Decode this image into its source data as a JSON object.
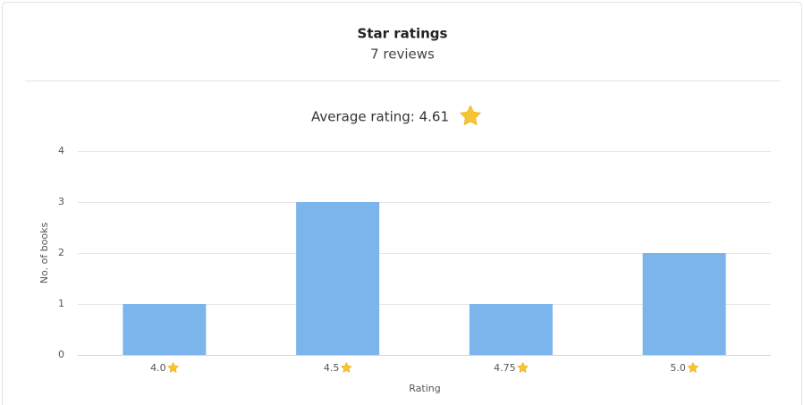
{
  "chart_data": {
    "type": "bar",
    "title": "Star ratings",
    "subtitle": "7 reviews",
    "annotation": "Average rating: 4.61",
    "categories": [
      "4.0",
      "4.5",
      "4.75",
      "5.0"
    ],
    "values": [
      1,
      3,
      1,
      2
    ],
    "color": "#7cb5ec",
    "xlabel": "Rating",
    "ylabel": "No. of books",
    "ylim": [
      0,
      4
    ],
    "yticks": [
      0,
      1,
      2,
      3,
      4
    ],
    "grid": true
  }
}
